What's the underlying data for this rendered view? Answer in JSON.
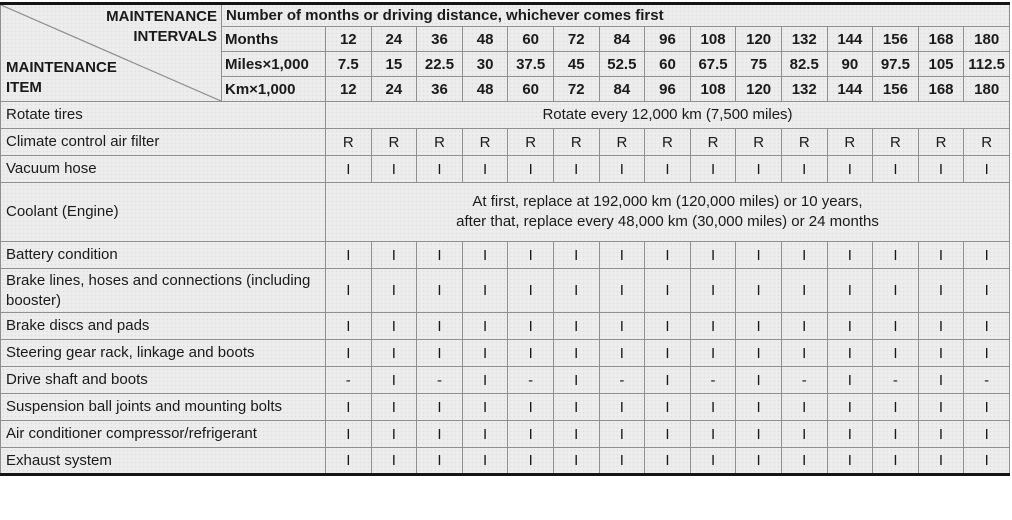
{
  "table": {
    "corner": {
      "top_label_line1": "MAINTENANCE",
      "top_label_line2": "INTERVALS",
      "bottom_label_line1": "MAINTENANCE",
      "bottom_label_line2": "ITEM"
    },
    "intervals_title": "Number of months or driving distance, whichever comes first",
    "unit_rows": [
      {
        "label": "Months",
        "values": [
          "12",
          "24",
          "36",
          "48",
          "60",
          "72",
          "84",
          "96",
          "108",
          "120",
          "132",
          "144",
          "156",
          "168",
          "180"
        ]
      },
      {
        "label": "Miles×1,000",
        "values": [
          "7.5",
          "15",
          "22.5",
          "30",
          "37.5",
          "45",
          "52.5",
          "60",
          "67.5",
          "75",
          "82.5",
          "90",
          "97.5",
          "105",
          "112.5"
        ]
      },
      {
        "label": "Km×1,000",
        "values": [
          "12",
          "24",
          "36",
          "48",
          "60",
          "72",
          "84",
          "96",
          "108",
          "120",
          "132",
          "144",
          "156",
          "168",
          "180"
        ]
      }
    ],
    "rows": [
      {
        "item": "Rotate tires",
        "note": "Rotate every 12,000 km (7,500 miles)"
      },
      {
        "item": "Climate control air filter",
        "cells": [
          "R",
          "R",
          "R",
          "R",
          "R",
          "R",
          "R",
          "R",
          "R",
          "R",
          "R",
          "R",
          "R",
          "R",
          "R"
        ]
      },
      {
        "item": "Vacuum hose",
        "cells": [
          "I",
          "I",
          "I",
          "I",
          "I",
          "I",
          "I",
          "I",
          "I",
          "I",
          "I",
          "I",
          "I",
          "I",
          "I"
        ]
      },
      {
        "item": "Coolant (Engine)",
        "note_lines": [
          "At first, replace at 192,000 km (120,000 miles) or 10 years,",
          "after that, replace every 48,000 km (30,000 miles) or 24 months"
        ]
      },
      {
        "item": "Battery condition",
        "cells": [
          "I",
          "I",
          "I",
          "I",
          "I",
          "I",
          "I",
          "I",
          "I",
          "I",
          "I",
          "I",
          "I",
          "I",
          "I"
        ]
      },
      {
        "item": "Brake lines, hoses and connections (including booster)",
        "cells": [
          "I",
          "I",
          "I",
          "I",
          "I",
          "I",
          "I",
          "I",
          "I",
          "I",
          "I",
          "I",
          "I",
          "I",
          "I"
        ]
      },
      {
        "item": "Brake discs and pads",
        "cells": [
          "I",
          "I",
          "I",
          "I",
          "I",
          "I",
          "I",
          "I",
          "I",
          "I",
          "I",
          "I",
          "I",
          "I",
          "I"
        ]
      },
      {
        "item": "Steering gear rack, linkage and boots",
        "cells": [
          "I",
          "I",
          "I",
          "I",
          "I",
          "I",
          "I",
          "I",
          "I",
          "I",
          "I",
          "I",
          "I",
          "I",
          "I"
        ]
      },
      {
        "item": "Drive shaft and boots",
        "cells": [
          "-",
          "I",
          "-",
          "I",
          "-",
          "I",
          "-",
          "I",
          "-",
          "I",
          "-",
          "I",
          "-",
          "I",
          "-"
        ]
      },
      {
        "item": "Suspension ball joints and mounting bolts",
        "cells": [
          "I",
          "I",
          "I",
          "I",
          "I",
          "I",
          "I",
          "I",
          "I",
          "I",
          "I",
          "I",
          "I",
          "I",
          "I"
        ]
      },
      {
        "item": "Air conditioner compressor/refrigerant",
        "cells": [
          "I",
          "I",
          "I",
          "I",
          "I",
          "I",
          "I",
          "I",
          "I",
          "I",
          "I",
          "I",
          "I",
          "I",
          "I"
        ]
      },
      {
        "item": "Exhaust system",
        "cells": [
          "I",
          "I",
          "I",
          "I",
          "I",
          "I",
          "I",
          "I",
          "I",
          "I",
          "I",
          "I",
          "I",
          "I",
          "I"
        ]
      }
    ]
  },
  "colors": {
    "cell_light": "#ecedec",
    "cell_shaded": "#dcdddc",
    "grid_border": "#8f8f8f",
    "frame": "#151515",
    "text": "#1a1a1a"
  }
}
